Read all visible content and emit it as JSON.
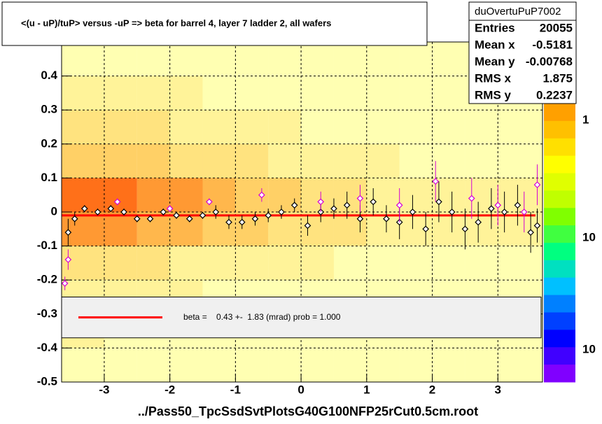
{
  "chart_data": {
    "type": "profile2d",
    "title": "<(u - uP)/tuP> versus  -uP => beta for barrel 4, layer 7 ladder 2, all wafers",
    "xlabel": "../Pass50_TpcSsdSvtPlotsG40G100NFP25rCut0.5cm.root",
    "xlim": [
      -3.65,
      3.68
    ],
    "ylim": [
      -0.5,
      0.5
    ],
    "xticks": [
      -3,
      -2,
      -1,
      0,
      1,
      2,
      3
    ],
    "yticks": [
      -0.5,
      -0.4,
      -0.3,
      -0.2,
      -0.1,
      0,
      0.1,
      0.2,
      0.3,
      0.4,
      0.5
    ],
    "grid": true,
    "heatmap": {
      "xbins": [
        -3.65,
        -3.0,
        -2.5,
        -2.0,
        -1.5,
        -1.0,
        -0.5,
        0,
        0.5,
        1.0,
        1.5,
        2.0,
        2.5,
        3.0,
        3.68
      ],
      "ybins": [
        -0.5,
        -0.4,
        -0.3,
        -0.2,
        -0.1,
        0,
        0.1,
        0.2,
        0.3,
        0.4,
        0.5
      ],
      "z": [
        [
          1,
          1,
          1,
          1,
          1,
          1,
          1,
          1,
          1,
          1,
          1,
          1,
          1,
          1
        ],
        [
          2,
          1,
          1,
          1,
          1,
          1,
          1,
          1,
          1,
          1,
          1,
          1,
          1,
          1
        ],
        [
          2,
          2,
          2,
          2,
          1,
          1,
          1,
          1,
          1,
          1,
          1,
          1,
          1,
          1
        ],
        [
          3,
          3,
          3,
          2,
          2,
          2,
          2,
          2,
          1,
          1,
          1,
          1,
          1,
          1
        ],
        [
          6,
          6,
          5,
          5,
          4,
          4,
          3,
          3,
          3,
          2,
          2,
          2,
          2,
          2
        ],
        [
          7,
          7,
          6,
          6,
          5,
          4,
          4,
          3,
          3,
          2,
          2,
          2,
          2,
          2
        ],
        [
          4,
          4,
          4,
          3,
          3,
          3,
          2,
          2,
          2,
          2,
          1,
          1,
          1,
          1
        ],
        [
          3,
          3,
          3,
          2,
          2,
          2,
          2,
          1,
          1,
          1,
          1,
          1,
          1,
          1
        ],
        [
          2,
          2,
          2,
          2,
          1,
          1,
          1,
          1,
          1,
          1,
          1,
          1,
          1,
          1
        ],
        [
          1,
          1,
          1,
          1,
          1,
          1,
          1,
          1,
          1,
          1,
          1,
          1,
          1,
          1
        ]
      ],
      "zlabels": [
        "1",
        "10",
        "10"
      ]
    },
    "series": [
      {
        "color": "#000000",
        "x": [
          -3.55,
          -3.45,
          -3.3,
          -3.1,
          -2.9,
          -2.7,
          -2.5,
          -2.3,
          -2.1,
          -1.9,
          -1.7,
          -1.5,
          -1.3,
          -1.1,
          -0.9,
          -0.7,
          -0.5,
          -0.3,
          -0.1,
          0.1,
          0.3,
          0.5,
          0.7,
          0.9,
          1.1,
          1.3,
          1.5,
          1.7,
          1.9,
          2.1,
          2.3,
          2.5,
          2.7,
          2.9,
          3.1,
          3.3,
          3.5,
          3.6
        ],
        "values": [
          -0.06,
          -0.02,
          0.01,
          0.0,
          0.01,
          0.0,
          -0.02,
          -0.02,
          0.0,
          -0.01,
          -0.02,
          -0.01,
          0.0,
          -0.03,
          -0.03,
          -0.02,
          -0.01,
          0.0,
          0.02,
          -0.04,
          0.0,
          0.01,
          0.02,
          -0.02,
          0.03,
          -0.02,
          -0.03,
          0.0,
          -0.05,
          0.03,
          0.0,
          -0.05,
          -0.03,
          0.01,
          0.0,
          0.02,
          -0.06,
          -0.04
        ],
        "errors": [
          0.04,
          0.02,
          0.01,
          0.01,
          0.01,
          0.01,
          0.01,
          0.01,
          0.01,
          0.01,
          0.01,
          0.01,
          0.02,
          0.02,
          0.02,
          0.02,
          0.02,
          0.02,
          0.02,
          0.03,
          0.03,
          0.03,
          0.04,
          0.04,
          0.04,
          0.04,
          0.05,
          0.05,
          0.05,
          0.06,
          0.06,
          0.06,
          0.06,
          0.06,
          0.06,
          0.06,
          0.06,
          0.05
        ]
      },
      {
        "color": "#d400d4",
        "x": [
          -3.6,
          -3.55,
          -2.8,
          -2.0,
          -1.4,
          -0.6,
          0.3,
          0.9,
          1.5,
          2.05,
          2.6,
          3.0,
          3.4,
          3.6
        ],
        "values": [
          -0.21,
          -0.14,
          0.03,
          0.01,
          0.03,
          0.05,
          0.03,
          0.04,
          0.02,
          0.09,
          0.04,
          0.02,
          0.0,
          0.08
        ],
        "errors": [
          0.02,
          0.03,
          0.01,
          0.01,
          0.01,
          0.02,
          0.03,
          0.04,
          0.05,
          0.06,
          0.06,
          0.06,
          0.06,
          0.06
        ]
      }
    ],
    "fit": {
      "color": "#ff0000",
      "y": -0.01,
      "label": "beta =    0.43 +-  1.83 (mrad) prob = 1.000",
      "band": [
        -0.37,
        -0.25
      ]
    },
    "stats": {
      "name": "duOvertuPuP7002",
      "rows": [
        [
          "Entries",
          "20055"
        ],
        [
          "Mean x",
          "-0.5181"
        ],
        [
          "Mean y",
          "-0.00768"
        ],
        [
          "RMS x",
          "1.875"
        ],
        [
          "RMS y",
          "0.2237"
        ]
      ]
    }
  }
}
